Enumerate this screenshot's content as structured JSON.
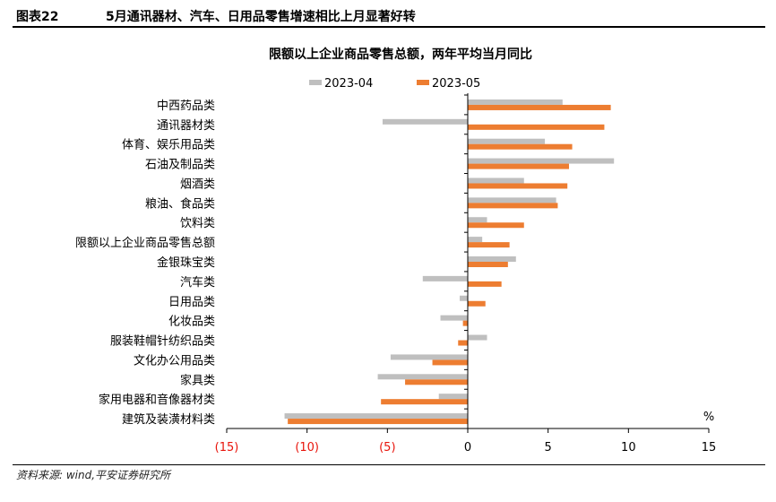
{
  "figure": {
    "label": "图表22",
    "caption": "5月通讯器材、汽车、日用品零售增速相比上月显著好转",
    "source": "资料来源: wind,平安证券研究所"
  },
  "colors": {
    "s2023_04": "#BFBFBF",
    "s2023_05": "#ED7D31",
    "negative_tick": "#E8140B",
    "axis": "#000000"
  },
  "chart_data": {
    "type": "bar",
    "orientation": "horizontal",
    "title": "限额以上企业商品零售总额，两年平均当月同比",
    "unit_label": "%",
    "xlim": [
      -15,
      15
    ],
    "ticks": [
      -15,
      -10,
      -5,
      0,
      5,
      10,
      15
    ],
    "tick_labels": [
      "(15)",
      "(10)",
      "(5)",
      "0",
      "5",
      "10",
      "15"
    ],
    "legend_position": "top-center",
    "categories": [
      "中西药品类",
      "通讯器材类",
      "体育、娱乐用品类",
      "石油及制品类",
      "烟酒类",
      "粮油、食品类",
      "饮料类",
      "限额以上企业商品零售总额",
      "金银珠宝类",
      "汽车类",
      "日用品类",
      "化妆品类",
      "服装鞋帽针纺织品类",
      "文化办公用品类",
      "家具类",
      "家用电器和音像器材类",
      "建筑及装潢材料类"
    ],
    "series": [
      {
        "name": "2023-04",
        "values": [
          5.9,
          -5.3,
          4.8,
          9.1,
          3.5,
          5.5,
          1.2,
          0.9,
          3.0,
          -2.8,
          -0.5,
          -1.7,
          1.2,
          -4.8,
          -5.6,
          -1.8,
          -11.4
        ]
      },
      {
        "name": "2023-05",
        "values": [
          8.9,
          8.5,
          6.5,
          6.3,
          6.2,
          5.6,
          3.5,
          2.6,
          2.5,
          2.1,
          1.1,
          -0.3,
          -0.6,
          -2.2,
          -3.9,
          -5.4,
          -11.2
        ]
      }
    ]
  }
}
